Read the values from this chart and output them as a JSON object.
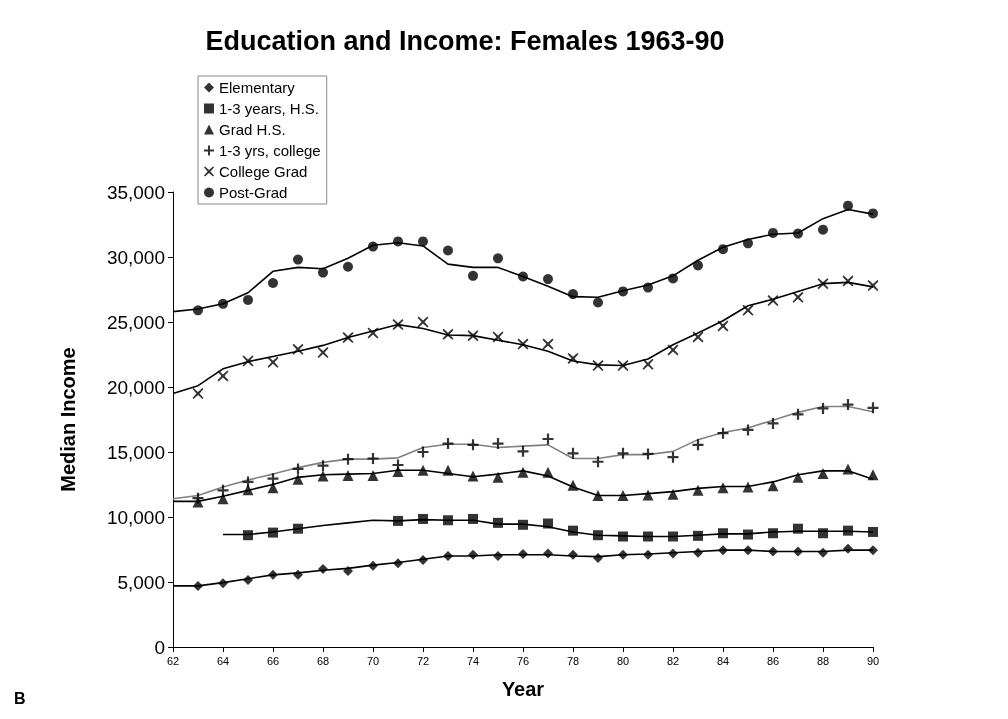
{
  "chart_data": {
    "type": "scatter",
    "title": "Education and Income: Females 1963-90",
    "xlabel": "Year",
    "ylabel": "Median Income",
    "annotations": [
      "B"
    ],
    "xlim": [
      62,
      90
    ],
    "xticks": [
      62,
      64,
      66,
      68,
      70,
      72,
      74,
      76,
      78,
      80,
      82,
      84,
      86,
      88,
      90
    ],
    "ylim": [
      0,
      35000
    ],
    "yticks": [
      0,
      {
        "value": 5000,
        "label": "5,000"
      },
      {
        "value": 10000,
        "label": "10,000"
      },
      {
        "value": 15000,
        "label": "15,000"
      },
      {
        "value": 20000,
        "label": "20,000"
      },
      {
        "value": 25000,
        "label": "25,000"
      },
      {
        "value": 30000,
        "label": "30,000"
      },
      {
        "value": 35000,
        "label": "35,000"
      }
    ],
    "grid": false,
    "legend": "top left",
    "series": [
      {
        "name": "Elementary",
        "color": "#000000",
        "marker": "diamond",
        "x": [
          63,
          64,
          65,
          66,
          67,
          68,
          69,
          70,
          71,
          72,
          73,
          74,
          75,
          76,
          77,
          78,
          79,
          80,
          81,
          82,
          83,
          84,
          85,
          86,
          87,
          88,
          89,
          90
        ],
        "values": [
          4700,
          4900,
          5150,
          5550,
          5550,
          6000,
          5850,
          6250,
          6450,
          6700,
          7000,
          7100,
          7000,
          7150,
          7200,
          7100,
          6850,
          7100,
          7100,
          7200,
          7250,
          7450,
          7450,
          7350,
          7350,
          7250,
          7550,
          7450
        ]
      },
      {
        "name": "1-3 years, H.S.",
        "color": "#000000",
        "marker": "square",
        "x": [
          65,
          66,
          67,
          71,
          72,
          73,
          74,
          75,
          76,
          77,
          78,
          79,
          80,
          81,
          82,
          83,
          84,
          85,
          86,
          87,
          88,
          89,
          90
        ],
        "values": [
          8600,
          8800,
          9100,
          9700,
          9850,
          9750,
          9850,
          9550,
          9400,
          9500,
          8950,
          8600,
          8500,
          8500,
          8500,
          8550,
          8750,
          8650,
          8750,
          9100,
          8750,
          8950,
          8850
        ]
      },
      {
        "name": "Grad H.S.",
        "color": "#000000",
        "marker": "triangle",
        "x": [
          63,
          64,
          65,
          66,
          67,
          68,
          69,
          70,
          71,
          72,
          73,
          74,
          75,
          76,
          77,
          78,
          79,
          80,
          81,
          82,
          83,
          84,
          85,
          86,
          87,
          88,
          89,
          90
        ],
        "values": [
          11150,
          11400,
          12100,
          12250,
          12900,
          13150,
          13200,
          13200,
          13500,
          13600,
          13600,
          13150,
          13050,
          13450,
          13450,
          12450,
          11650,
          11650,
          11700,
          11750,
          12050,
          12250,
          12300,
          12400,
          13050,
          13350,
          13700,
          13250
        ]
      },
      {
        "name": "1-3 yrs, college",
        "color": "#000000",
        "marker": "cross",
        "x": [
          63,
          64,
          65,
          66,
          67,
          68,
          69,
          70,
          71,
          72,
          73,
          74,
          75,
          76,
          77,
          78,
          79,
          80,
          81,
          82,
          83,
          84,
          85,
          86,
          87,
          88,
          89,
          90
        ],
        "values": [
          11450,
          12050,
          12700,
          12950,
          13700,
          13950,
          14450,
          14500,
          14000,
          15000,
          15650,
          15550,
          15650,
          15050,
          16000,
          14900,
          14250,
          14900,
          14850,
          14600,
          15550,
          16450,
          16700,
          17200,
          17900,
          18350,
          18650,
          18400
        ]
      },
      {
        "name": "College Grad",
        "color": "#000000",
        "marker": "cross",
        "x": [
          63,
          64,
          65,
          66,
          67,
          68,
          69,
          70,
          71,
          72,
          73,
          74,
          75,
          76,
          77,
          78,
          79,
          80,
          81,
          82,
          83,
          84,
          85,
          86,
          87,
          88,
          89,
          90
        ],
        "values": [
          19500,
          20850,
          22000,
          21900,
          22900,
          22650,
          23800,
          24150,
          24800,
          25000,
          24050,
          23950,
          23850,
          23300,
          23300,
          22200,
          21650,
          21650,
          21750,
          22850,
          23850,
          24700,
          25900,
          26650,
          26900,
          27950,
          28150,
          27800
        ]
      },
      {
        "name": "Post-Grad",
        "color": "#000000",
        "marker": "circle",
        "x": [
          63,
          64,
          65,
          66,
          67,
          68,
          69,
          70,
          71,
          72,
          73,
          74,
          75,
          76,
          77,
          78,
          79,
          80,
          81,
          82,
          83,
          84,
          85,
          86,
          87,
          88,
          89,
          90
        ],
        "values": [
          25900,
          26400,
          26700,
          28000,
          29800,
          28800,
          29250,
          30800,
          31200,
          31200,
          30500,
          28550,
          29900,
          28500,
          28300,
          27150,
          26500,
          27350,
          27650,
          28350,
          29350,
          30600,
          31050,
          31850,
          31800,
          32100,
          33950,
          33350
        ]
      },
      {
        "type": "line",
        "color": "#000000",
        "marker": "none",
        "x": [
          62,
          63,
          64,
          65,
          66,
          67,
          68,
          69,
          70,
          71,
          72,
          73,
          74,
          75,
          76,
          77,
          78,
          79,
          80,
          81,
          82,
          83,
          84,
          85,
          86,
          87,
          88,
          89,
          90
        ],
        "values": [
          4700,
          4700,
          4950,
          5250,
          5550,
          5700,
          5900,
          6050,
          6300,
          6500,
          6750,
          7000,
          7000,
          7100,
          7100,
          7100,
          7000,
          6950,
          7100,
          7150,
          7250,
          7350,
          7450,
          7450,
          7350,
          7350,
          7350,
          7450,
          7450
        ]
      },
      {
        "type": "line",
        "color": "#000000",
        "marker": "none",
        "x": [
          64,
          65,
          66,
          67,
          68,
          69,
          70,
          71,
          72,
          73,
          74,
          75,
          76,
          77,
          78,
          79,
          80,
          81,
          82,
          83,
          84,
          85,
          86,
          87,
          88,
          89,
          90
        ],
        "values": [
          8650,
          8650,
          8850,
          9100,
          9350,
          9550,
          9750,
          9700,
          9800,
          9750,
          9750,
          9450,
          9450,
          9250,
          8850,
          8600,
          8550,
          8500,
          8500,
          8600,
          8700,
          8700,
          8850,
          8900,
          8900,
          8900,
          8850
        ]
      },
      {
        "type": "line",
        "color": "#000000",
        "marker": "none",
        "x": [
          62,
          63,
          64,
          65,
          66,
          67,
          68,
          69,
          70,
          71,
          72,
          73,
          74,
          75,
          76,
          77,
          78,
          79,
          80,
          81,
          82,
          83,
          84,
          85,
          86,
          87,
          88,
          89,
          90
        ],
        "values": [
          11200,
          11200,
          11600,
          12050,
          12500,
          13050,
          13250,
          13300,
          13350,
          13600,
          13600,
          13350,
          13100,
          13300,
          13550,
          13150,
          12300,
          11650,
          11650,
          11800,
          11950,
          12200,
          12350,
          12350,
          12700,
          13250,
          13550,
          13550,
          12900
        ]
      },
      {
        "type": "line",
        "color": "#808080",
        "marker": "none",
        "x": [
          62,
          63,
          64,
          65,
          66,
          67,
          68,
          69,
          70,
          71,
          72,
          73,
          74,
          75,
          76,
          77,
          78,
          79,
          80,
          81,
          82,
          83,
          84,
          85,
          86,
          87,
          88,
          89,
          90
        ],
        "values": [
          11400,
          11650,
          12300,
          12850,
          13300,
          13800,
          14200,
          14450,
          14450,
          14550,
          15350,
          15600,
          15600,
          15350,
          15450,
          15550,
          14500,
          14500,
          14800,
          14800,
          15050,
          15950,
          16500,
          16850,
          17450,
          18050,
          18500,
          18500,
          18100
        ]
      },
      {
        "type": "line",
        "color": "#000000",
        "marker": "none",
        "x": [
          62,
          63,
          64,
          65,
          66,
          67,
          68,
          69,
          70,
          71,
          72,
          73,
          74,
          75,
          76,
          77,
          78,
          79,
          80,
          81,
          82,
          83,
          84,
          85,
          86,
          87,
          88,
          89,
          90
        ],
        "values": [
          19500,
          20100,
          21400,
          21950,
          22350,
          22750,
          23200,
          23800,
          24300,
          24800,
          24500,
          24000,
          23950,
          23600,
          23250,
          22750,
          22000,
          21700,
          21650,
          22150,
          23250,
          24150,
          25100,
          26250,
          26750,
          27350,
          27950,
          28050,
          27700
        ]
      },
      {
        "type": "line",
        "color": "#000000",
        "marker": "none",
        "x": [
          62,
          63,
          64,
          65,
          66,
          67,
          68,
          69,
          70,
          71,
          72,
          73,
          74,
          75,
          76,
          77,
          78,
          79,
          80,
          81,
          82,
          83,
          84,
          85,
          86,
          87,
          88,
          89,
          90
        ],
        "values": [
          25800,
          26000,
          26400,
          27250,
          28900,
          29200,
          29100,
          29900,
          30900,
          31100,
          30850,
          29450,
          29200,
          29200,
          28500,
          27750,
          26950,
          26900,
          27400,
          27850,
          28550,
          29750,
          30750,
          31350,
          31750,
          31850,
          32950,
          33650,
          33300
        ]
      }
    ]
  }
}
